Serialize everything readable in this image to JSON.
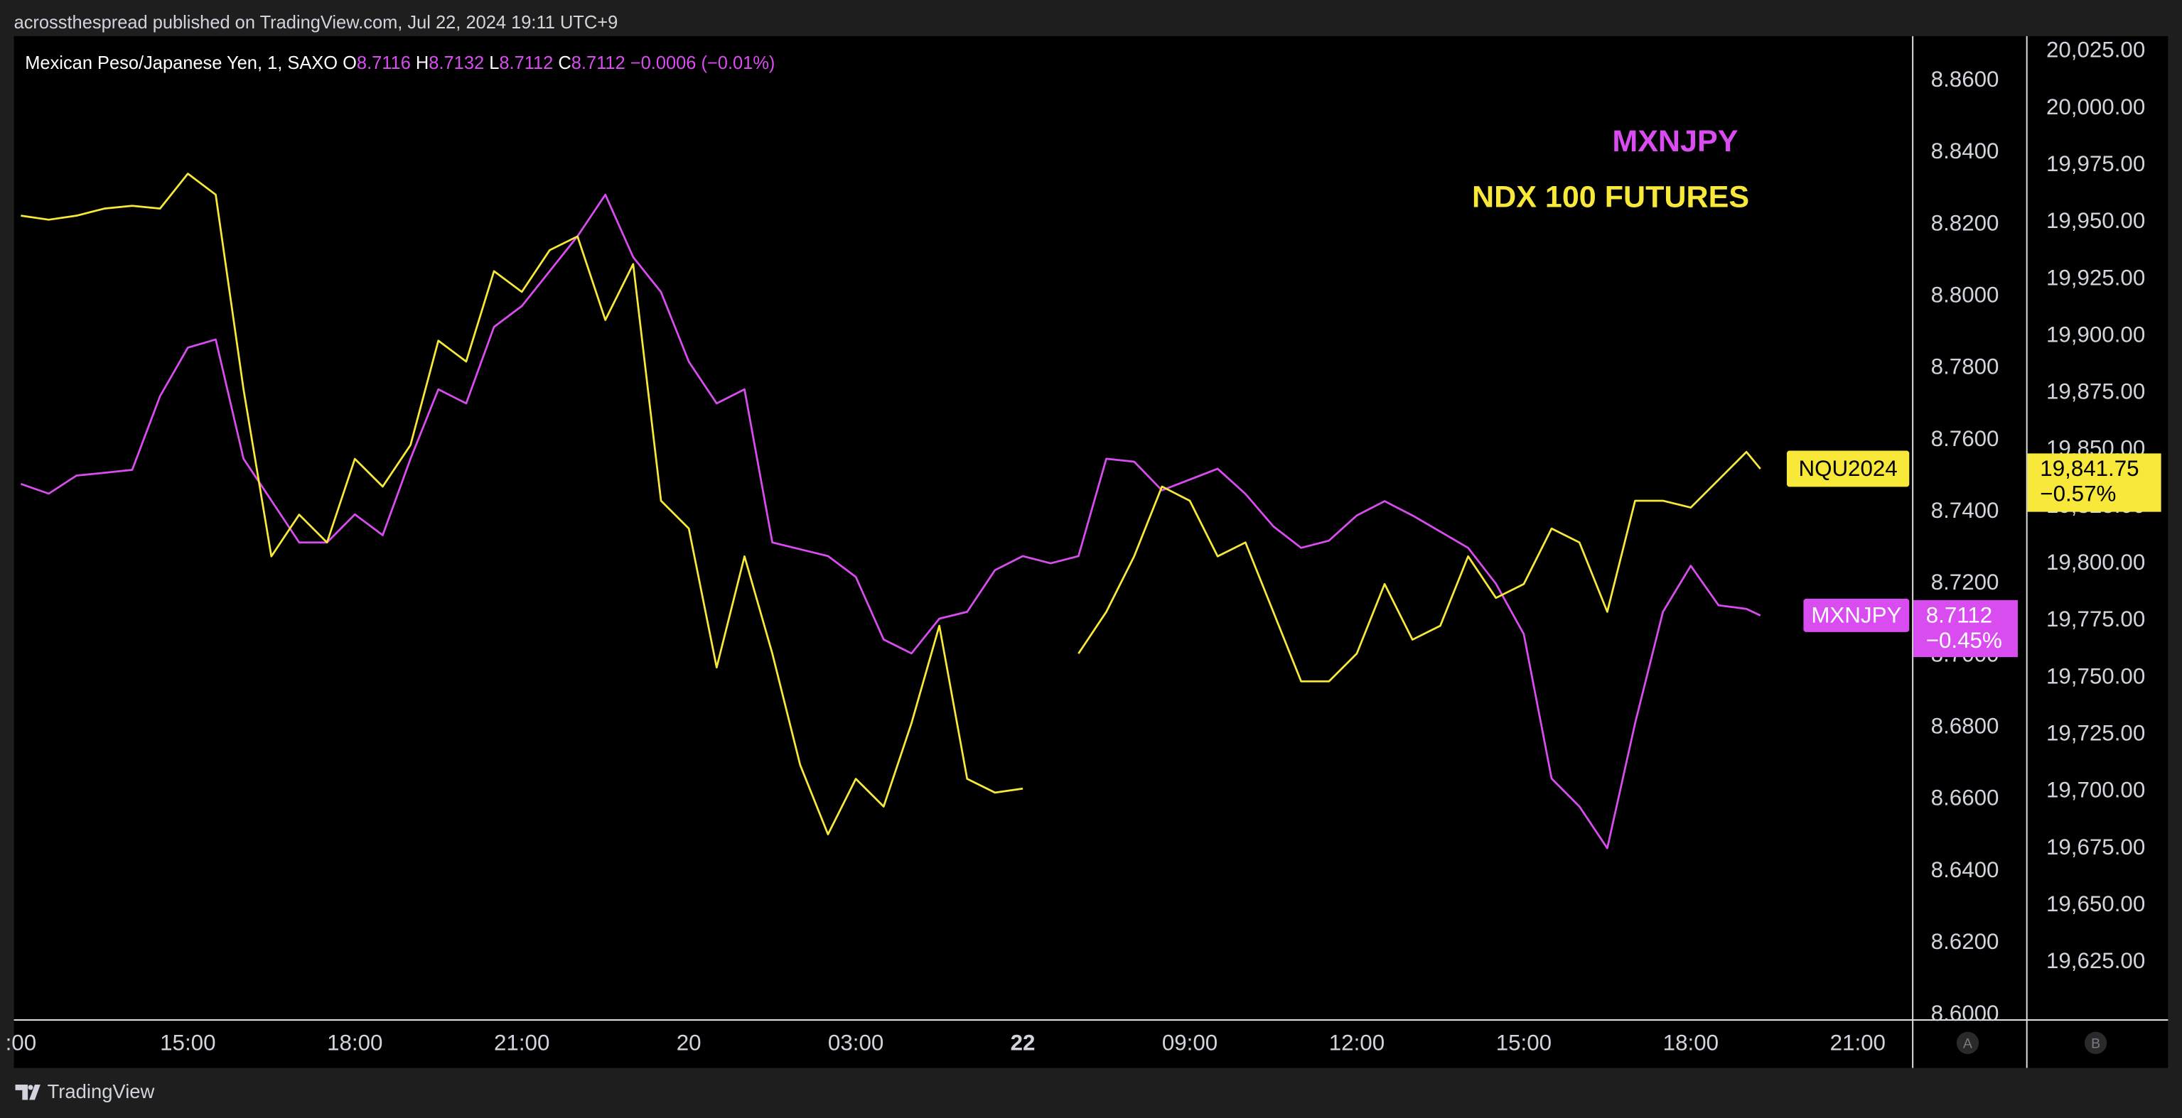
{
  "header": {
    "text": "acrossthespread published on TradingView.com, Jul 22, 2024 19:11 UTC+9"
  },
  "footer": {
    "brand": "TradingView"
  },
  "axis_buttons": [
    "A",
    "B"
  ],
  "chart_data": {
    "type": "line",
    "title": "Mexican Peso/Japanese Yen, 1, SAXO",
    "ohlc": [
      {
        "label": "O",
        "value": 8.7116
      },
      {
        "label": "H",
        "value": 8.7132
      },
      {
        "label": "L",
        "value": 8.7112
      },
      {
        "label": "C",
        "value": 8.7112
      }
    ],
    "change": "−0.0006 (−0.01%)",
    "x": [
      0,
      0.5,
      1,
      1.5,
      2,
      2.5,
      3,
      3.5,
      4,
      4.5,
      5,
      5.5,
      6,
      6.5,
      7,
      7.5,
      8,
      8.5,
      9,
      9.5,
      10,
      10.5,
      11,
      11.5,
      12,
      12.5,
      13,
      13.5,
      14,
      14.5,
      15,
      15.5,
      16,
      16.5,
      17,
      17.5,
      18,
      18.5,
      19,
      19.5,
      20,
      20.5,
      21,
      21.5,
      22,
      22.5,
      23,
      23.5,
      24,
      24.5,
      25,
      25.5,
      26,
      26.5,
      27,
      27.5,
      28,
      28.5,
      29,
      29.5,
      30,
      30.5,
      31,
      31.25
    ],
    "xlim": [
      -0.125,
      33.975
    ],
    "xticks": [
      {
        "value": 0,
        "label": ":00"
      },
      {
        "value": 3,
        "label": "15:00"
      },
      {
        "value": 6,
        "label": "18:00"
      },
      {
        "value": 9,
        "label": "21:00"
      },
      {
        "value": 12,
        "label": "20"
      },
      {
        "value": 15,
        "label": "03:00"
      },
      {
        "value": 18,
        "label": "22"
      },
      {
        "value": 21,
        "label": "09:00"
      },
      {
        "value": 24,
        "label": "12:00"
      },
      {
        "value": 27,
        "label": "15:00"
      },
      {
        "value": 30,
        "label": "18:00"
      },
      {
        "value": 33,
        "label": "21:00"
      }
    ],
    "ylim": [
      8.5988,
      8.8724
    ],
    "yticks": [
      {
        "value": 8.6,
        "label": "8.6000"
      },
      {
        "value": 8.62,
        "label": "8.6200"
      },
      {
        "value": 8.64,
        "label": "8.6400"
      },
      {
        "value": 8.66,
        "label": "8.6600"
      },
      {
        "value": 8.68,
        "label": "8.6800"
      },
      {
        "value": 8.7,
        "label": "8.7000"
      },
      {
        "value": 8.72,
        "label": "8.7200"
      },
      {
        "value": 8.74,
        "label": "8.7400"
      },
      {
        "value": 8.76,
        "label": "8.7600"
      },
      {
        "value": 8.78,
        "label": "8.7800"
      },
      {
        "value": 8.8,
        "label": "8.8000"
      },
      {
        "value": 8.82,
        "label": "8.8200"
      },
      {
        "value": 8.84,
        "label": "8.8400"
      },
      {
        "value": 8.86,
        "label": "8.8600"
      }
    ],
    "y2lim": [
      19600,
      20031.7
    ],
    "y2ticks": [
      {
        "value": 19625,
        "label": "19,625.00"
      },
      {
        "value": 19650,
        "label": "19,650.00"
      },
      {
        "value": 19675,
        "label": "19,675.00"
      },
      {
        "value": 19700,
        "label": "19,700.00"
      },
      {
        "value": 19725,
        "label": "19,725.00"
      },
      {
        "value": 19750,
        "label": "19,750.00"
      },
      {
        "value": 19775,
        "label": "19,775.00"
      },
      {
        "value": 19800,
        "label": "19,800.00"
      },
      {
        "value": 19825,
        "label": "19,825.00"
      },
      {
        "value": 19850,
        "label": "19,850.00"
      },
      {
        "value": 19875,
        "label": "19,875.00"
      },
      {
        "value": 19900,
        "label": "19,900.00"
      },
      {
        "value": 19925,
        "label": "19,925.00"
      },
      {
        "value": 19950,
        "label": "19,950.00"
      },
      {
        "value": 19975,
        "label": "19,975.00"
      },
      {
        "value": 20000,
        "label": "20,000.00"
      },
      {
        "value": 20025,
        "label": "20,025.00"
      }
    ],
    "series": [
      {
        "name": "MXNJPY",
        "symbol": "MXNJPY",
        "color": "#d94cf0",
        "axis": "y",
        "last_label": "8.7112",
        "change_label": "−0.45%",
        "label_text_color": "#ffffff",
        "values": [
          8.7478,
          8.7451,
          8.7501,
          8.7509,
          8.7517,
          8.7722,
          8.7857,
          8.788,
          8.7548,
          8.7432,
          8.7315,
          8.7315,
          8.7393,
          8.7335,
          8.7548,
          8.7741,
          8.7702,
          8.7915,
          8.7973,
          8.807,
          8.8167,
          8.8283,
          8.8109,
          8.8012,
          8.7818,
          8.7702,
          8.7741,
          8.7315,
          8.7296,
          8.7277,
          8.7219,
          8.7045,
          8.7006,
          8.7103,
          8.7122,
          8.7238,
          8.7277,
          8.7257,
          8.7277,
          8.7548,
          8.754,
          8.746,
          8.749,
          8.752,
          8.745,
          8.736,
          8.73,
          8.732,
          8.739,
          8.743,
          8.739,
          8.7345,
          8.73,
          8.72,
          8.706,
          8.6658,
          8.658,
          8.6464,
          8.6812,
          8.7122,
          8.725,
          8.714,
          8.713,
          8.7112
        ]
      },
      {
        "name": "NDX 100 FUTURES",
        "symbol": "NQU2024",
        "color": "#f7e83a",
        "axis": "y2",
        "last_label": "19,841.75",
        "change_label": "−0.57%",
        "label_text_color": "#000000",
        "values": [
          19952.9,
          19951.1,
          19952.9,
          19956,
          19957.2,
          19956,
          19971.3,
          19962.1,
          19876.6,
          19803.3,
          19821.6,
          19809.4,
          19846.1,
          19833.9,
          19852.2,
          19898,
          19888.8,
          19928.5,
          19919.4,
          19937.7,
          19943.8,
          19907.1,
          19931.6,
          19827.7,
          19815.5,
          19754.5,
          19803.3,
          19760.6,
          19711.7,
          19681.2,
          19705.6,
          19693.4,
          19730,
          19772.8,
          19705.6,
          19699.5,
          19701.3,
          null,
          19760.6,
          19778.9,
          19803.3,
          19833.9,
          19827.7,
          19803.3,
          19809.4,
          19778.9,
          19748.4,
          19748.4,
          19760.6,
          19791.1,
          19766.7,
          19772.8,
          19803.3,
          19785,
          19791.1,
          19815.5,
          19809.4,
          19778.9,
          19827.7,
          19827.7,
          19824.7,
          19836.9,
          19849.1,
          19841.75
        ]
      }
    ]
  }
}
